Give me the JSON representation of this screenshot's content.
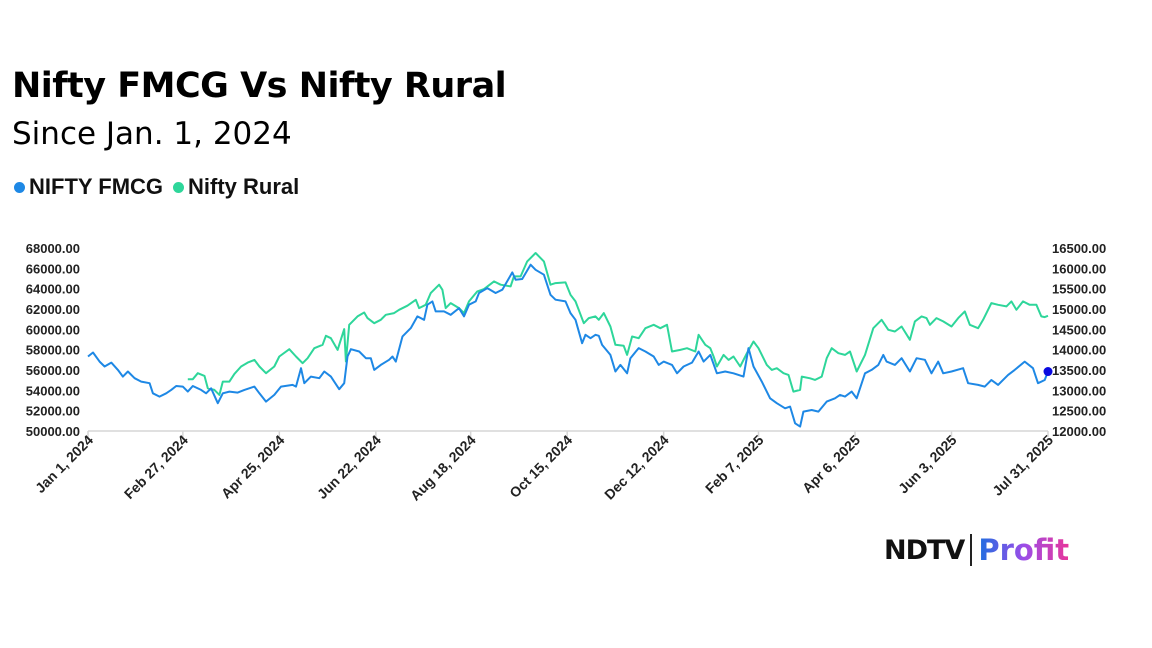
{
  "chart_data": {
    "type": "line",
    "title": "Nifty FMCG Vs Nifty Rural",
    "subtitle": "Since Jan. 1, 2024",
    "x_unit": "days since 2024-01-01",
    "x_ticks": [
      {
        "day": 0,
        "label": "Jan 1, 2024"
      },
      {
        "day": 57,
        "label": "Feb 27, 2024"
      },
      {
        "day": 115,
        "label": "Apr 25, 2024"
      },
      {
        "day": 173,
        "label": "Jun 22, 2024"
      },
      {
        "day": 230,
        "label": "Aug 18, 2024"
      },
      {
        "day": 288,
        "label": "Oct 15, 2024"
      },
      {
        "day": 346,
        "label": "Dec 12, 2024"
      },
      {
        "day": 403,
        "label": "Feb 7, 2025"
      },
      {
        "day": 461,
        "label": "Apr 6, 2025"
      },
      {
        "day": 519,
        "label": "Jun 3, 2025"
      },
      {
        "day": 577,
        "label": "Jul 31, 2025"
      }
    ],
    "xlim": [
      0,
      577
    ],
    "y_left": {
      "lim": [
        50000,
        68000
      ],
      "ticks": [
        "50000.00",
        "52000.00",
        "54000.00",
        "56000.00",
        "58000.00",
        "60000.00",
        "62000.00",
        "64000.00",
        "66000.00",
        "68000.00"
      ]
    },
    "y_right": {
      "lim": [
        12000,
        16500
      ],
      "ticks": [
        "12000.00",
        "12500.00",
        "13000.00",
        "13500.00",
        "14000.00",
        "14500.00",
        "15000.00",
        "15500.00",
        "16000.00",
        "16500.00"
      ]
    },
    "legend_position": "top-left",
    "grid": false,
    "series": [
      {
        "name": "NIFTY FMCG",
        "axis": "left",
        "color": "#1e88e5",
        "points": [
          [
            0,
            57330
          ],
          [
            3,
            57720
          ],
          [
            7,
            56830
          ],
          [
            10,
            56340
          ],
          [
            14,
            56730
          ],
          [
            18,
            56010
          ],
          [
            21,
            55350
          ],
          [
            24,
            55850
          ],
          [
            28,
            55190
          ],
          [
            32,
            54860
          ],
          [
            37,
            54700
          ],
          [
            39,
            53710
          ],
          [
            43,
            53380
          ],
          [
            47,
            53710
          ],
          [
            50,
            54040
          ],
          [
            53,
            54430
          ],
          [
            57,
            54370
          ],
          [
            60,
            53880
          ],
          [
            63,
            54430
          ],
          [
            68,
            54040
          ],
          [
            71,
            53710
          ],
          [
            74,
            54200
          ],
          [
            78,
            52730
          ],
          [
            81,
            53710
          ],
          [
            85,
            53880
          ],
          [
            90,
            53780
          ],
          [
            94,
            54040
          ],
          [
            100,
            54370
          ],
          [
            103,
            53710
          ],
          [
            107,
            52890
          ],
          [
            112,
            53550
          ],
          [
            116,
            54370
          ],
          [
            123,
            54530
          ],
          [
            125,
            54370
          ],
          [
            128,
            56180
          ],
          [
            130,
            54700
          ],
          [
            134,
            55350
          ],
          [
            139,
            55190
          ],
          [
            142,
            55850
          ],
          [
            146,
            55350
          ],
          [
            151,
            54110
          ],
          [
            154,
            54700
          ],
          [
            156,
            57330
          ],
          [
            158,
            58050
          ],
          [
            163,
            57820
          ],
          [
            167,
            57160
          ],
          [
            170,
            57160
          ],
          [
            172,
            56010
          ],
          [
            176,
            56500
          ],
          [
            181,
            57000
          ],
          [
            183,
            57330
          ],
          [
            185,
            56830
          ],
          [
            189,
            59300
          ],
          [
            194,
            60120
          ],
          [
            198,
            61270
          ],
          [
            202,
            60940
          ],
          [
            204,
            62420
          ],
          [
            207,
            62750
          ],
          [
            209,
            61760
          ],
          [
            214,
            61760
          ],
          [
            218,
            61430
          ],
          [
            223,
            62090
          ],
          [
            226,
            61270
          ],
          [
            229,
            62420
          ],
          [
            233,
            62750
          ],
          [
            235,
            63570
          ],
          [
            240,
            64060
          ],
          [
            245,
            63570
          ],
          [
            249,
            63900
          ],
          [
            255,
            65600
          ],
          [
            257,
            64880
          ],
          [
            261,
            64950
          ],
          [
            266,
            66360
          ],
          [
            269,
            65860
          ],
          [
            274,
            65370
          ],
          [
            278,
            63400
          ],
          [
            281,
            62910
          ],
          [
            287,
            62750
          ],
          [
            290,
            61600
          ],
          [
            293,
            60940
          ],
          [
            297,
            58640
          ],
          [
            299,
            59460
          ],
          [
            302,
            59130
          ],
          [
            305,
            59460
          ],
          [
            307,
            59360
          ],
          [
            309,
            58470
          ],
          [
            314,
            57490
          ],
          [
            317,
            55850
          ],
          [
            320,
            56500
          ],
          [
            324,
            55680
          ],
          [
            326,
            57160
          ],
          [
            331,
            58150
          ],
          [
            335,
            57820
          ],
          [
            340,
            57330
          ],
          [
            343,
            56500
          ],
          [
            346,
            56830
          ],
          [
            351,
            56500
          ],
          [
            354,
            55680
          ],
          [
            358,
            56340
          ],
          [
            363,
            56730
          ],
          [
            367,
            57820
          ],
          [
            370,
            56830
          ],
          [
            374,
            57490
          ],
          [
            378,
            55680
          ],
          [
            383,
            55850
          ],
          [
            388,
            55680
          ],
          [
            394,
            55350
          ],
          [
            397,
            58150
          ],
          [
            400,
            56340
          ],
          [
            405,
            54860
          ],
          [
            410,
            53220
          ],
          [
            414,
            52730
          ],
          [
            419,
            52230
          ],
          [
            422,
            52400
          ],
          [
            425,
            50760
          ],
          [
            428,
            50430
          ],
          [
            430,
            51910
          ],
          [
            435,
            52070
          ],
          [
            439,
            51910
          ],
          [
            444,
            52890
          ],
          [
            449,
            53220
          ],
          [
            452,
            53550
          ],
          [
            455,
            53380
          ],
          [
            459,
            53880
          ],
          [
            462,
            53220
          ],
          [
            467,
            55680
          ],
          [
            471,
            56010
          ],
          [
            475,
            56500
          ],
          [
            478,
            57490
          ],
          [
            480,
            56830
          ],
          [
            485,
            56500
          ],
          [
            489,
            57160
          ],
          [
            494,
            55850
          ],
          [
            498,
            57160
          ],
          [
            503,
            57000
          ],
          [
            507,
            55680
          ],
          [
            511,
            56830
          ],
          [
            514,
            55680
          ],
          [
            519,
            55850
          ],
          [
            526,
            56180
          ],
          [
            529,
            54700
          ],
          [
            535,
            54530
          ],
          [
            539,
            54370
          ],
          [
            543,
            55020
          ],
          [
            547,
            54530
          ],
          [
            553,
            55520
          ],
          [
            557,
            56010
          ],
          [
            563,
            56830
          ],
          [
            568,
            56180
          ],
          [
            571,
            54700
          ],
          [
            575,
            55020
          ],
          [
            577,
            55850
          ]
        ]
      },
      {
        "name": "Nifty Rural",
        "axis": "right",
        "color": "#2ed69a",
        "points": [
          [
            60,
            13273
          ],
          [
            63,
            13273
          ],
          [
            66,
            13421
          ],
          [
            70,
            13355
          ],
          [
            72,
            13051
          ],
          [
            76,
            13010
          ],
          [
            79,
            12887
          ],
          [
            81,
            13215
          ],
          [
            85,
            13215
          ],
          [
            88,
            13404
          ],
          [
            92,
            13585
          ],
          [
            96,
            13683
          ],
          [
            100,
            13749
          ],
          [
            103,
            13585
          ],
          [
            107,
            13421
          ],
          [
            112,
            13585
          ],
          [
            115,
            13831
          ],
          [
            121,
            14012
          ],
          [
            125,
            13831
          ],
          [
            129,
            13667
          ],
          [
            132,
            13790
          ],
          [
            136,
            14036
          ],
          [
            141,
            14119
          ],
          [
            143,
            14340
          ],
          [
            146,
            14283
          ],
          [
            150,
            13995
          ],
          [
            154,
            14505
          ],
          [
            155,
            13708
          ],
          [
            157,
            14611
          ],
          [
            162,
            14817
          ],
          [
            166,
            14915
          ],
          [
            168,
            14776
          ],
          [
            172,
            14652
          ],
          [
            176,
            14735
          ],
          [
            179,
            14858
          ],
          [
            184,
            14899
          ],
          [
            187,
            14981
          ],
          [
            192,
            15080
          ],
          [
            197,
            15227
          ],
          [
            199,
            15022
          ],
          [
            203,
            15104
          ],
          [
            206,
            15391
          ],
          [
            211,
            15597
          ],
          [
            213,
            15473
          ],
          [
            215,
            15022
          ],
          [
            218,
            15145
          ],
          [
            223,
            15022
          ],
          [
            226,
            14899
          ],
          [
            229,
            15186
          ],
          [
            234,
            15432
          ],
          [
            238,
            15490
          ],
          [
            244,
            15679
          ],
          [
            248,
            15597
          ],
          [
            254,
            15555
          ],
          [
            256,
            15802
          ],
          [
            260,
            15802
          ],
          [
            264,
            16171
          ],
          [
            269,
            16376
          ],
          [
            274,
            16171
          ],
          [
            278,
            15597
          ],
          [
            281,
            15638
          ],
          [
            287,
            15654
          ],
          [
            290,
            15350
          ],
          [
            293,
            15186
          ],
          [
            298,
            14652
          ],
          [
            301,
            14776
          ],
          [
            305,
            14817
          ],
          [
            307,
            14735
          ],
          [
            310,
            14899
          ],
          [
            314,
            14570
          ],
          [
            317,
            14119
          ],
          [
            322,
            14094
          ],
          [
            324,
            13872
          ],
          [
            327,
            14324
          ],
          [
            331,
            14283
          ],
          [
            335,
            14529
          ],
          [
            340,
            14611
          ],
          [
            344,
            14529
          ],
          [
            348,
            14611
          ],
          [
            351,
            13954
          ],
          [
            356,
            13995
          ],
          [
            360,
            14036
          ],
          [
            365,
            13954
          ],
          [
            367,
            14365
          ],
          [
            371,
            14119
          ],
          [
            374,
            14036
          ],
          [
            376,
            13831
          ],
          [
            378,
            13585
          ],
          [
            382,
            13872
          ],
          [
            385,
            13749
          ],
          [
            388,
            13831
          ],
          [
            392,
            13585
          ],
          [
            396,
            13913
          ],
          [
            400,
            14201
          ],
          [
            403,
            14036
          ],
          [
            408,
            13626
          ],
          [
            411,
            13503
          ],
          [
            414,
            13544
          ],
          [
            418,
            13421
          ],
          [
            421,
            13380
          ],
          [
            424,
            12969
          ],
          [
            428,
            13010
          ],
          [
            429,
            13338
          ],
          [
            434,
            13297
          ],
          [
            437,
            13256
          ],
          [
            441,
            13338
          ],
          [
            444,
            13790
          ],
          [
            447,
            14036
          ],
          [
            451,
            13913
          ],
          [
            455,
            13872
          ],
          [
            458,
            13954
          ],
          [
            462,
            13462
          ],
          [
            467,
            13872
          ],
          [
            472,
            14529
          ],
          [
            477,
            14735
          ],
          [
            481,
            14488
          ],
          [
            485,
            14447
          ],
          [
            489,
            14570
          ],
          [
            494,
            14242
          ],
          [
            497,
            14694
          ],
          [
            501,
            14817
          ],
          [
            504,
            14776
          ],
          [
            506,
            14611
          ],
          [
            510,
            14776
          ],
          [
            514,
            14694
          ],
          [
            519,
            14570
          ],
          [
            523,
            14776
          ],
          [
            527,
            14940
          ],
          [
            530,
            14611
          ],
          [
            535,
            14529
          ],
          [
            538,
            14735
          ],
          [
            543,
            15145
          ],
          [
            547,
            15104
          ],
          [
            552,
            15063
          ],
          [
            555,
            15186
          ],
          [
            558,
            14981
          ],
          [
            562,
            15186
          ],
          [
            566,
            15104
          ],
          [
            570,
            15104
          ],
          [
            573,
            14817
          ],
          [
            575,
            14800
          ],
          [
            577,
            14833
          ]
        ]
      }
    ],
    "highlight_point": {
      "series": "NIFTY FMCG",
      "day": 577,
      "value": 55850,
      "color": "#0a0ae0"
    }
  },
  "legend": {
    "items": [
      {
        "label": "NIFTY FMCG",
        "color": "#1e88e5"
      },
      {
        "label": "Nifty Rural",
        "color": "#2ed69a"
      }
    ]
  },
  "logo": {
    "left": "NDTV",
    "right": "Profit"
  }
}
